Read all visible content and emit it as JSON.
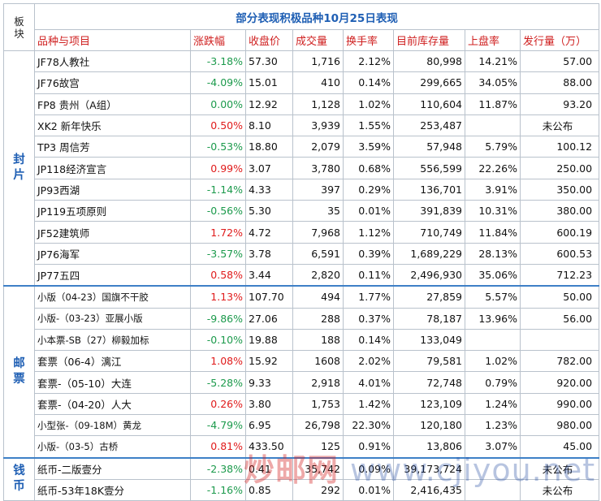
{
  "title": "部分表现积极品种10月25日表现",
  "corner_label": [
    "板",
    "块"
  ],
  "headers": {
    "name": "品种与项目",
    "change": "涨跌幅",
    "close": "收盘价",
    "volume": "成交量",
    "turnover": "换手率",
    "stock": "目前库存量",
    "premium": "上盘率",
    "issue": "发行量（万）"
  },
  "groups": [
    {
      "label": [
        "封",
        "片"
      ],
      "rows": [
        {
          "name": "JF78人教社",
          "change": "-3.18%",
          "dir": "neg",
          "close": "57.30",
          "volume": "1,716",
          "turnover": "2.12%",
          "stock": "80,998",
          "premium": "14.21%",
          "issue": "57.00"
        },
        {
          "name": "JF76故宫",
          "change": "-4.09%",
          "dir": "neg",
          "close": "15.01",
          "volume": "410",
          "turnover": "0.14%",
          "stock": "299,665",
          "premium": "34.05%",
          "issue": "88.00"
        },
        {
          "name": "FP8 贵州（A组）",
          "change": "0.00%",
          "dir": "neg",
          "close": "12.92",
          "volume": "1,128",
          "turnover": "1.02%",
          "stock": "110,604",
          "premium": "11.87%",
          "issue": "93.20"
        },
        {
          "name": "XK2 新年快乐",
          "change": "0.50%",
          "dir": "pos",
          "close": "8.10",
          "volume": "3,939",
          "turnover": "1.55%",
          "stock": "253,487",
          "premium": "",
          "issue": "未公布"
        },
        {
          "name": "TP3 周信芳",
          "change": "-0.53%",
          "dir": "neg",
          "close": "18.80",
          "volume": "2,079",
          "turnover": "3.59%",
          "stock": "57,948",
          "premium": "5.79%",
          "issue": "100.12"
        },
        {
          "name": "JP118经济宣言",
          "change": "0.99%",
          "dir": "pos",
          "close": "3.07",
          "volume": "3,780",
          "turnover": "0.68%",
          "stock": "556,599",
          "premium": "22.26%",
          "issue": "250.00"
        },
        {
          "name": "JP93西湖",
          "change": "-1.14%",
          "dir": "neg",
          "close": "4.33",
          "volume": "397",
          "turnover": "0.29%",
          "stock": "136,701",
          "premium": "3.91%",
          "issue": "350.00"
        },
        {
          "name": "JP119五项原则",
          "change": "-0.56%",
          "dir": "neg",
          "close": "5.30",
          "volume": "35",
          "turnover": "0.01%",
          "stock": "391,839",
          "premium": "10.31%",
          "issue": "380.00"
        },
        {
          "name": "JF52建筑师",
          "change": "1.72%",
          "dir": "pos",
          "close": "4.72",
          "volume": "7,968",
          "turnover": "1.12%",
          "stock": "710,749",
          "premium": "11.84%",
          "issue": "600.19"
        },
        {
          "name": "JP76海军",
          "change": "-3.57%",
          "dir": "neg",
          "close": "3.78",
          "volume": "6,591",
          "turnover": "0.39%",
          "stock": "1,689,229",
          "premium": "28.13%",
          "issue": "600.53"
        },
        {
          "name": "JP77五四",
          "change": "0.58%",
          "dir": "pos",
          "close": "3.44",
          "volume": "2,820",
          "turnover": "0.11%",
          "stock": "2,496,930",
          "premium": "35.06%",
          "issue": "712.23"
        }
      ]
    },
    {
      "label": [
        "邮",
        "票"
      ],
      "rows": [
        {
          "name": "小版（04-23）国旗不干胶",
          "small": true,
          "change": "1.13%",
          "dir": "pos",
          "close": "107.70",
          "volume": "494",
          "turnover": "1.77%",
          "stock": "27,859",
          "premium": "5.57%",
          "issue": "50.00"
        },
        {
          "name": "小版-（03-23）亚展小版",
          "small": true,
          "change": "-9.86%",
          "dir": "neg",
          "close": "27.06",
          "volume": "288",
          "turnover": "0.37%",
          "stock": "78,187",
          "premium": "13.96%",
          "issue": "56.00"
        },
        {
          "name": "小本票-SB（27）柳毅加标",
          "small": true,
          "change": "-0.10%",
          "dir": "neg",
          "close": "19.88",
          "volume": "188",
          "turnover": "0.14%",
          "stock": "133,049",
          "premium": "",
          "issue": ""
        },
        {
          "name": "套票（06-4）漓江",
          "change": "1.08%",
          "dir": "pos",
          "close": "15.92",
          "volume": "1608",
          "turnover": "2.02%",
          "stock": "79,581",
          "premium": "1.02%",
          "issue": "782.00"
        },
        {
          "name": "套票-（05-10）大连",
          "change": "-5.28%",
          "dir": "neg",
          "close": "9.33",
          "volume": "2,918",
          "turnover": "4.01%",
          "stock": "72,748",
          "premium": "0.79%",
          "issue": "920.00"
        },
        {
          "name": "套票-（04-20）人大",
          "change": "0.26%",
          "dir": "pos",
          "close": "3.80",
          "volume": "1,753",
          "turnover": "1.42%",
          "stock": "123,109",
          "premium": "1.24%",
          "issue": "990.00"
        },
        {
          "name": "小型张-（09-18M）黄龙",
          "small": true,
          "change": "-4.79%",
          "dir": "neg",
          "close": "6.95",
          "volume": "26,798",
          "turnover": "22.30%",
          "stock": "120,180",
          "premium": "1.23%",
          "issue": "980.00"
        },
        {
          "name": "小版-（03-5）古桥",
          "small": true,
          "change": "0.81%",
          "dir": "pos",
          "close": "433.50",
          "volume": "125",
          "turnover": "0.91%",
          "stock": "13,806",
          "premium": "3.07%",
          "issue": "45.00"
        }
      ]
    },
    {
      "label": [
        "钱",
        "币"
      ],
      "rows": [
        {
          "name": "纸币-二版壹分",
          "change": "-2.38%",
          "dir": "neg",
          "close": "0.41",
          "volume": "35,742",
          "turnover": "0.09%",
          "stock": "39,173,724",
          "premium": "",
          "issue": "未公布"
        },
        {
          "name": "纸币-53年18K壹分",
          "change": "-1.16%",
          "dir": "neg",
          "close": "0.85",
          "volume": "292",
          "turnover": "0.01%",
          "stock": "2,416,435",
          "premium": "",
          "issue": "未公布"
        }
      ]
    }
  ],
  "watermark": {
    "cn": "炒邮网",
    "url": "www.cjiyou.net"
  },
  "colors": {
    "title": "#1f5fb4",
    "header": "#cf1f1f",
    "up": "#e01b1b",
    "down": "#1c9a4c"
  }
}
